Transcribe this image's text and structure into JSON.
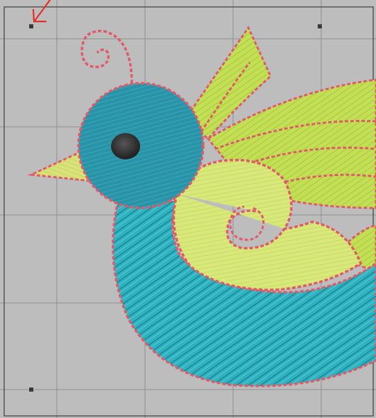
{
  "canvas": {
    "name": "embroidery-design-canvas",
    "background_color": "#bdbdbd",
    "grid_color": "#8f8f8f",
    "handle_color": "#3a3a3a",
    "annotation_arrow_color": "#e0302a"
  },
  "design": {
    "subject": "stitched bird",
    "thread_colors": {
      "outline": "#e05a6a",
      "head": "#2a93a8",
      "head_highlight": "#3bb0c2",
      "body": "#2fb2c0",
      "body_dark": "#1c8594",
      "wing": "#d8e87a",
      "wing_shade": "#c3d75a",
      "tail_feathers": "#b9d94a",
      "beak": "#d4e06a",
      "eye": "#2c2c2c"
    }
  }
}
